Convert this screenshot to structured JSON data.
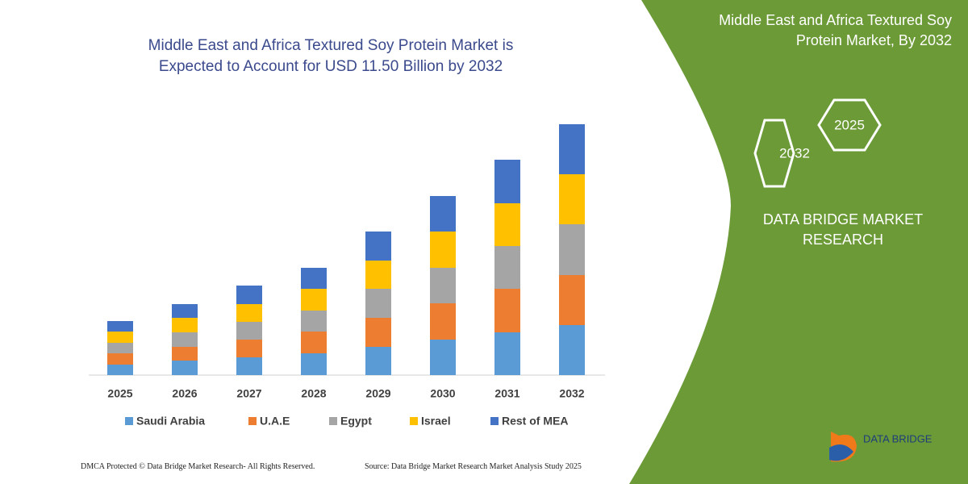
{
  "chart_data": {
    "type": "stacked_bar",
    "title": "Middle East and Africa Textured Soy Protein Market is Expected to Account for USD 11.50 Billion by 2032",
    "categories": [
      "2025",
      "2026",
      "2027",
      "2028",
      "2029",
      "2030",
      "2031",
      "2032"
    ],
    "series": [
      {
        "name": "Saudi Arabia",
        "color": "#5b9bd5",
        "values": [
          13,
          18,
          22,
          27,
          35,
          44,
          53,
          62
        ]
      },
      {
        "name": "U.A.E",
        "color": "#ed7d31",
        "values": [
          14,
          17,
          22,
          27,
          36,
          45,
          54,
          62
        ]
      },
      {
        "name": "Egypt",
        "color": "#a5a5a5",
        "values": [
          13,
          18,
          22,
          26,
          36,
          44,
          53,
          63
        ]
      },
      {
        "name": "Israel",
        "color": "#ffc000",
        "values": [
          14,
          18,
          22,
          27,
          35,
          45,
          53,
          62
        ]
      },
      {
        "name": "Rest of MEA",
        "color": "#4472c4",
        "values": [
          13,
          17,
          23,
          26,
          36,
          44,
          54,
          62
        ]
      }
    ]
  },
  "side_panel": {
    "title": "Middle East and Africa Textured Soy Protein Market, By 2032",
    "hexagons": [
      "2032",
      "2025"
    ],
    "brand": "DATA BRIDGE MARKET RESEARCH",
    "logo": "DATA BRIDGE"
  },
  "footer": {
    "copyright": "DMCA Protected © Data Bridge Market Research-  All Rights Reserved.",
    "source": "Source: Data Bridge Market Research  Market Analysis Study 2025"
  }
}
